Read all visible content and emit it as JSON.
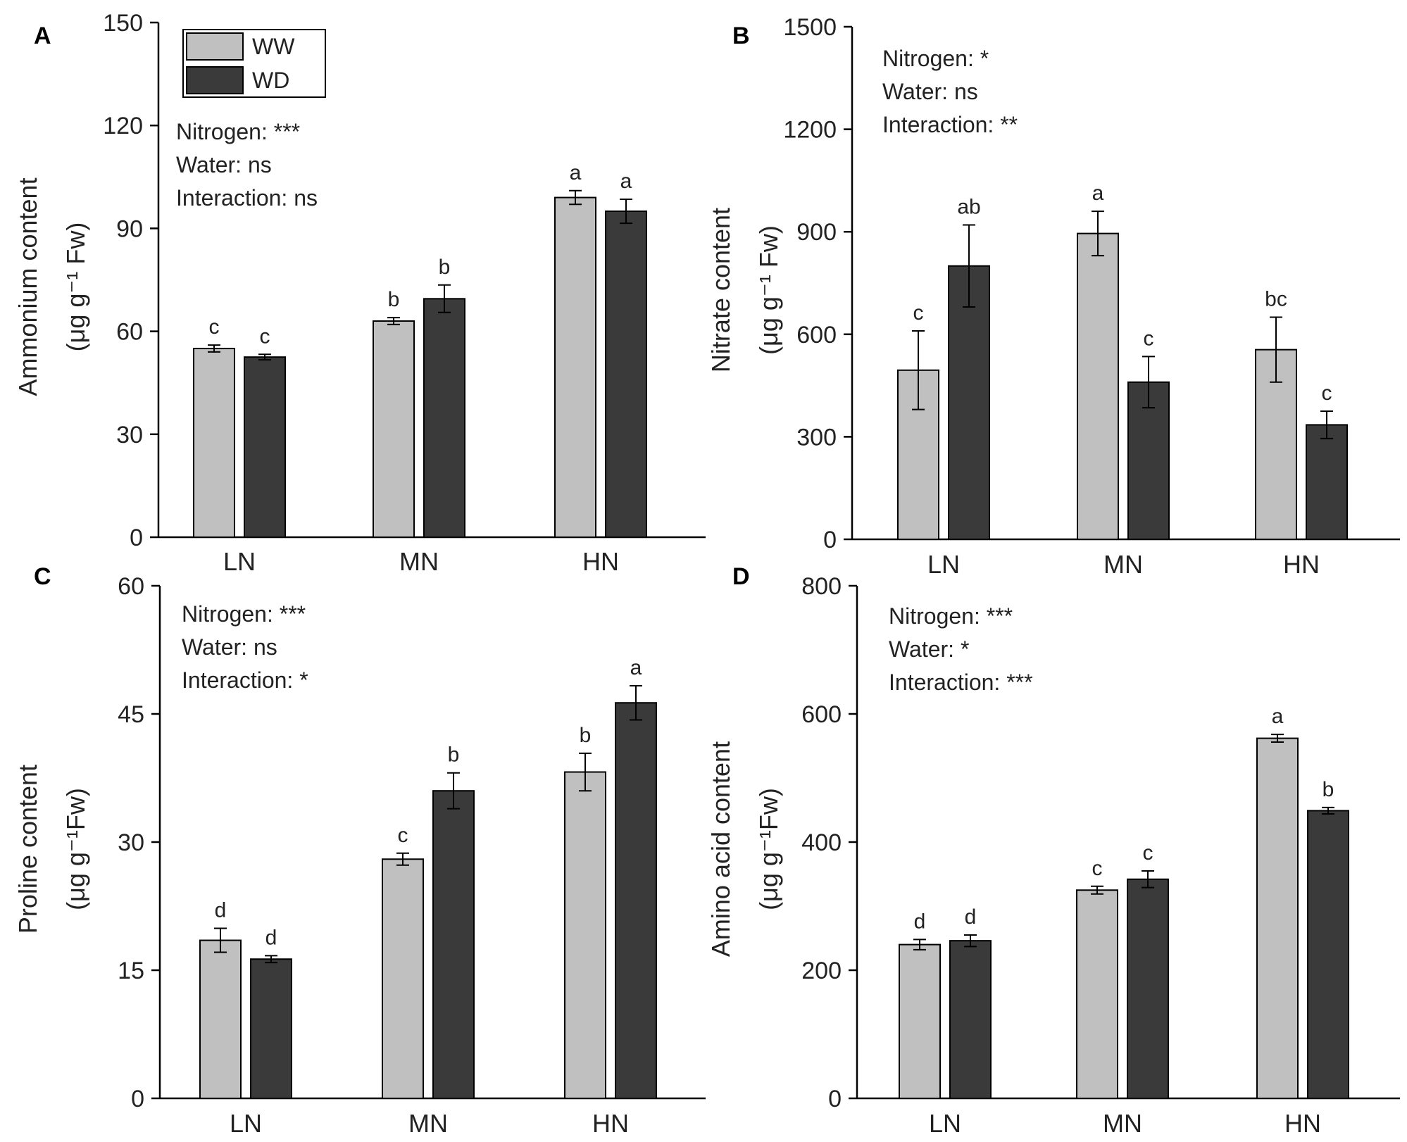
{
  "legend": {
    "ww_label": "WW",
    "wd_label": "WD",
    "ww_color": "#c0c0c0",
    "wd_color": "#3a3a3a"
  },
  "chart_data": [
    {
      "panel": "A",
      "type": "bar",
      "title": "",
      "xlabel": "",
      "ylabel": "Ammonium content",
      "ylabel_units": "(μg g⁻¹ Fw)",
      "categories": [
        "LN",
        "MN",
        "HN"
      ],
      "ylim": [
        0,
        150
      ],
      "yticks": [
        0,
        30,
        60,
        90,
        120,
        150
      ],
      "series": [
        {
          "name": "WW",
          "values": [
            55,
            63,
            99
          ],
          "errors": [
            1,
            1,
            2
          ],
          "letters": [
            "c",
            "b",
            "a"
          ]
        },
        {
          "name": "WD",
          "values": [
            52.5,
            69.5,
            95
          ],
          "errors": [
            0.8,
            4,
            3.5
          ],
          "letters": [
            "c",
            "b",
            "a"
          ]
        }
      ],
      "stats": [
        "Nitrogen: ***",
        "Water: ns",
        "Interaction: ns"
      ]
    },
    {
      "panel": "B",
      "type": "bar",
      "title": "",
      "xlabel": "",
      "ylabel": "Nitrate content",
      "ylabel_units": "(μg g⁻¹ Fw)",
      "categories": [
        "LN",
        "MN",
        "HN"
      ],
      "ylim": [
        0,
        1500
      ],
      "yticks": [
        0,
        300,
        600,
        900,
        1200,
        1500
      ],
      "series": [
        {
          "name": "WW",
          "values": [
            495,
            895,
            555
          ],
          "errors": [
            115,
            65,
            95
          ],
          "letters": [
            "c",
            "a",
            "bc"
          ]
        },
        {
          "name": "WD",
          "values": [
            800,
            460,
            335
          ],
          "errors": [
            120,
            75,
            40
          ],
          "letters": [
            "ab",
            "c",
            "c"
          ]
        }
      ],
      "stats": [
        "Nitrogen: *",
        "Water: ns",
        "Interaction: **"
      ]
    },
    {
      "panel": "C",
      "type": "bar",
      "title": "",
      "xlabel": "",
      "ylabel": "Proline content",
      "ylabel_units": "(μg g⁻¹Fw)",
      "categories": [
        "LN",
        "MN",
        "HN"
      ],
      "ylim": [
        0,
        60
      ],
      "yticks": [
        0,
        15,
        30,
        45,
        60
      ],
      "series": [
        {
          "name": "WW",
          "values": [
            18.5,
            28,
            38.2
          ],
          "errors": [
            1.4,
            0.7,
            2.2
          ],
          "letters": [
            "d",
            "c",
            "b"
          ]
        },
        {
          "name": "WD",
          "values": [
            16.3,
            36,
            46.3
          ],
          "errors": [
            0.4,
            2.1,
            2
          ],
          "letters": [
            "d",
            "b",
            "a"
          ]
        }
      ],
      "stats": [
        "Nitrogen: ***",
        "Water: ns",
        "Interaction: *"
      ]
    },
    {
      "panel": "D",
      "type": "bar",
      "title": "",
      "xlabel": "",
      "ylabel": "Amino acid content",
      "ylabel_units": "(μg g⁻¹Fw)",
      "categories": [
        "LN",
        "MN",
        "HN"
      ],
      "ylim": [
        0,
        800
      ],
      "yticks": [
        0,
        200,
        400,
        600,
        800
      ],
      "series": [
        {
          "name": "WW",
          "values": [
            240,
            325,
            562
          ],
          "errors": [
            8,
            6,
            6
          ],
          "letters": [
            "d",
            "c",
            "a"
          ]
        },
        {
          "name": "WD",
          "values": [
            246,
            342,
            449
          ],
          "errors": [
            9,
            13,
            5
          ],
          "letters": [
            "d",
            "c",
            "b"
          ]
        }
      ],
      "stats": [
        "Nitrogen: ***",
        "Water: *",
        "Interaction: ***"
      ]
    }
  ]
}
